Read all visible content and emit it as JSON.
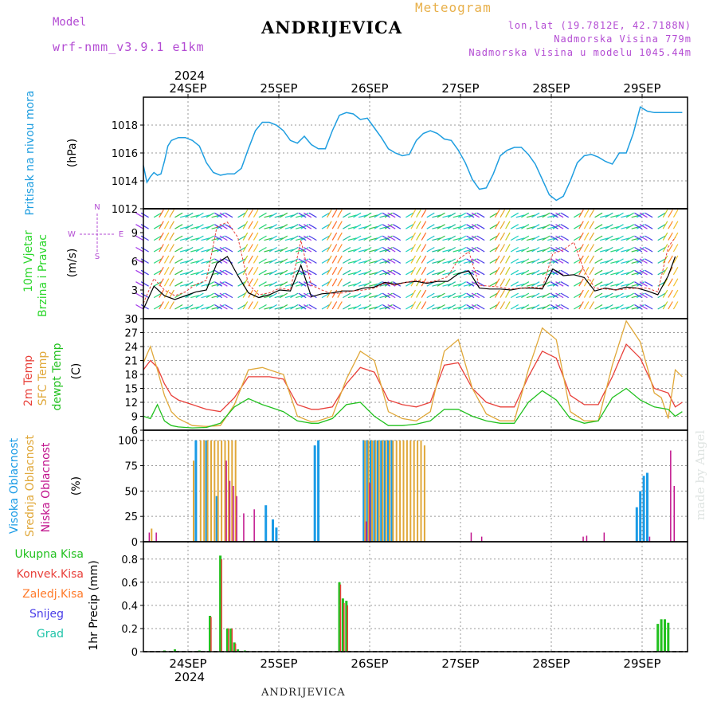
{
  "header": {
    "model_label": "Model",
    "model_name": "wrf-nmm_v3.9.1 e1km",
    "title": "ANDRIJEVICA",
    "meteogram": "Meteogram",
    "coords": "lon,lat (19.7812E, 42.7188N)",
    "elevation": "Nadmorska Visina 779m",
    "model_elevation": "Nadmorska Visina u modelu 1045.44m",
    "footer": "ANDRIJEVICA",
    "signature": "made by Angel"
  },
  "colors": {
    "pressure": "#1f9ee0",
    "temp": "#e8403a",
    "sfc": "#e0a83a",
    "dew": "#22c11f",
    "high_cloud": "#1a9be6",
    "mid_cloud": "#e0a83a",
    "low_cloud": "#c0128c",
    "precip_total": "#22c11f",
    "precip_conv": "#e8403a",
    "precip_frz": "#ff7a2a",
    "snow": "#4a3ee8",
    "hail": "#22c4a9",
    "label_purple": "#b34bd3"
  },
  "chart_data": [
    {
      "type": "line",
      "panel": "pressure",
      "ylabel": "Pritisak na nivou mora",
      "unit": "(hPa)",
      "ylim": [
        1012,
        1020
      ],
      "yticks": [
        1012,
        1014,
        1016,
        1018
      ],
      "x_days": [
        "24SEP",
        "25SEP",
        "26SEP",
        "27SEP",
        "28SEP",
        "29SEP"
      ],
      "x_year": "2024",
      "series": [
        {
          "x": [
            0,
            1,
            2,
            3,
            4,
            5,
            6,
            7,
            8,
            10,
            12,
            14,
            16,
            18,
            20,
            22,
            24,
            26,
            28,
            30,
            32,
            34,
            36,
            38,
            40,
            42,
            44,
            46,
            48,
            50,
            52,
            54,
            56,
            58,
            60,
            62,
            64,
            66,
            68,
            70,
            72,
            74,
            76,
            78,
            80,
            82,
            84,
            86,
            88,
            90,
            92,
            94,
            96,
            98,
            100,
            102,
            104,
            106,
            108,
            110,
            112,
            114,
            116,
            118,
            120,
            122,
            124,
            126,
            128,
            130,
            132,
            134,
            136,
            138,
            140,
            142,
            144,
            146,
            148,
            150,
            152,
            154
          ],
          "values": [
            1015.1,
            1013.9,
            1014.3,
            1014.6,
            1014.4,
            1014.5,
            1015.4,
            1016.5,
            1016.9,
            1017.1,
            1017.1,
            1016.9,
            1016.5,
            1015.3,
            1014.6,
            1014.4,
            1014.5,
            1014.5,
            1014.9,
            1016.3,
            1017.6,
            1018.2,
            1018.2,
            1018.0,
            1017.6,
            1016.9,
            1016.7,
            1017.2,
            1016.6,
            1016.3,
            1016.3,
            1017.6,
            1018.7,
            1018.9,
            1018.8,
            1018.4,
            1018.5,
            1017.8,
            1017.1,
            1016.3,
            1016.0,
            1015.8,
            1015.9,
            1016.9,
            1017.4,
            1017.6,
            1017.4,
            1017.0,
            1016.9,
            1016.2,
            1015.3,
            1014.1,
            1013.4,
            1013.5,
            1014.5,
            1015.8,
            1016.2,
            1016.4,
            1016.4,
            1015.9,
            1015.2,
            1014.1,
            1013.0,
            1012.6,
            1012.9,
            1014.0,
            1015.3,
            1015.8,
            1015.9,
            1015.7,
            1015.4,
            1015.2,
            1016.0,
            1016.0,
            1017.4,
            1019.3,
            1019.0,
            1018.9,
            1018.9,
            1018.9,
            1018.9,
            1018.9
          ]
        }
      ]
    },
    {
      "type": "line",
      "panel": "wind",
      "ylabel": "10m Vjetar Brzina i Pravac",
      "unit": "(m/s)",
      "compass": {
        "n": "N",
        "w": "W",
        "e": "E",
        "s": "S"
      },
      "ylim": [
        0,
        11.5
      ],
      "yticks": [
        0,
        3,
        6,
        9
      ],
      "series": [
        {
          "name": "speed",
          "x": [
            0,
            3,
            6,
            9,
            12,
            15,
            18,
            21,
            24,
            27,
            30,
            33,
            36,
            39,
            42,
            45,
            48,
            51,
            54,
            57,
            60,
            63,
            66,
            69,
            72,
            75,
            78,
            81,
            84,
            87,
            90,
            93,
            96,
            99,
            102,
            105,
            108,
            111,
            114,
            117,
            120,
            123,
            126,
            129,
            132,
            135,
            138,
            141,
            144,
            147,
            150,
            152
          ],
          "values": [
            1.0,
            3.4,
            2.4,
            2.0,
            2.4,
            2.8,
            3.0,
            5.8,
            6.5,
            4.5,
            2.7,
            2.2,
            2.5,
            3.0,
            2.9,
            5.6,
            2.3,
            2.6,
            2.7,
            2.9,
            2.9,
            3.2,
            3.3,
            3.8,
            3.6,
            3.8,
            3.9,
            3.7,
            3.9,
            3.9,
            4.7,
            5.0,
            3.2,
            3.1,
            3.1,
            3.0,
            3.2,
            3.2,
            3.1,
            5.2,
            4.5,
            4.6,
            4.3,
            2.9,
            3.2,
            3.0,
            3.3,
            3.2,
            2.9,
            2.5,
            4.5,
            6.5
          ]
        },
        {
          "name": "gust",
          "x": [
            0,
            3,
            6,
            9,
            12,
            15,
            18,
            21,
            24,
            27,
            30,
            33,
            36,
            39,
            42,
            45,
            48,
            51,
            54,
            57,
            60,
            63,
            66,
            69,
            72,
            75,
            78,
            81,
            84,
            87,
            90,
            93,
            96,
            99,
            102,
            105,
            108,
            111,
            114,
            117,
            120,
            123,
            126,
            129,
            132,
            135,
            138,
            141,
            144,
            147,
            150,
            152
          ],
          "values": [
            1.6,
            4.2,
            3.0,
            2.4,
            2.8,
            3.6,
            4.0,
            9.6,
            10.1,
            8.5,
            3.6,
            2.5,
            2.7,
            3.2,
            3.0,
            8.2,
            3.5,
            3.0,
            2.6,
            2.7,
            2.9,
            3.0,
            3.2,
            3.7,
            3.5,
            3.8,
            4.0,
            3.8,
            4.0,
            4.4,
            6.2,
            7.0,
            3.5,
            3.4,
            3.3,
            3.1,
            3.2,
            3.3,
            3.2,
            6.8,
            7.2,
            8.0,
            5.0,
            3.2,
            3.1,
            3.0,
            3.1,
            3.2,
            3.2,
            2.8,
            7.5,
            8.5
          ]
        }
      ]
    },
    {
      "type": "line",
      "panel": "temperature",
      "ylabel": [
        "2m Temp",
        "SFC Temp",
        "dewpt Temp"
      ],
      "unit": "(C)",
      "ylim": [
        6,
        30
      ],
      "yticks": [
        6,
        9,
        12,
        15,
        18,
        21,
        24,
        27,
        30
      ],
      "series": [
        {
          "name": "2m Temp",
          "x": [
            0,
            2,
            4,
            6,
            8,
            10,
            14,
            18,
            22,
            26,
            30,
            34,
            36,
            40,
            44,
            48,
            50,
            54,
            58,
            62,
            66,
            70,
            74,
            78,
            82,
            86,
            90,
            94,
            98,
            102,
            106,
            110,
            114,
            118,
            122,
            126,
            130,
            134,
            138,
            142,
            146,
            150,
            152,
            154
          ],
          "values": [
            19.0,
            21.0,
            19.5,
            16.0,
            13.5,
            12.5,
            11.5,
            10.5,
            10.0,
            13.0,
            17.5,
            17.5,
            17.5,
            17.0,
            11.5,
            10.5,
            10.5,
            11.0,
            16.0,
            19.5,
            18.5,
            12.5,
            11.5,
            11.0,
            12.0,
            20.0,
            20.5,
            15.0,
            12.0,
            11.0,
            11.0,
            17.5,
            23.0,
            21.5,
            13.5,
            11.5,
            11.5,
            17.5,
            24.5,
            21.5,
            15.0,
            14.0,
            11.0,
            12.0
          ]
        },
        {
          "name": "SFC Temp",
          "x": [
            0,
            2,
            4,
            6,
            8,
            10,
            14,
            18,
            22,
            26,
            30,
            34,
            36,
            40,
            44,
            48,
            50,
            54,
            58,
            62,
            66,
            70,
            74,
            78,
            82,
            86,
            90,
            94,
            98,
            102,
            106,
            110,
            114,
            118,
            122,
            126,
            130,
            134,
            138,
            142,
            146,
            148,
            150,
            152,
            154
          ],
          "values": [
            20.5,
            24.0,
            19.0,
            13.5,
            10.0,
            8.5,
            7.0,
            6.8,
            7.0,
            11.5,
            19.0,
            19.5,
            19.0,
            18.0,
            9.0,
            7.8,
            8.0,
            9.0,
            17.0,
            23.0,
            21.0,
            10.0,
            8.5,
            8.0,
            10.0,
            23.0,
            25.5,
            15.0,
            9.5,
            8.0,
            8.0,
            19.0,
            28.0,
            25.5,
            10.0,
            8.0,
            8.0,
            20.0,
            29.5,
            25.0,
            14.0,
            13.0,
            8.5,
            19.0,
            17.5
          ]
        },
        {
          "name": "dewpt Temp",
          "x": [
            0,
            2,
            4,
            6,
            8,
            10,
            14,
            18,
            22,
            26,
            30,
            34,
            36,
            40,
            44,
            48,
            50,
            54,
            58,
            62,
            66,
            70,
            74,
            78,
            82,
            86,
            90,
            94,
            98,
            102,
            106,
            110,
            114,
            118,
            122,
            126,
            130,
            134,
            138,
            142,
            146,
            150,
            152,
            154
          ],
          "values": [
            9.0,
            8.5,
            11.5,
            8.0,
            7.0,
            6.7,
            6.5,
            6.6,
            7.5,
            11.0,
            12.8,
            11.5,
            11.0,
            10.0,
            8.0,
            7.5,
            7.5,
            8.5,
            11.5,
            12.0,
            9.0,
            7.0,
            7.0,
            7.3,
            8.0,
            10.5,
            10.5,
            9.0,
            8.0,
            7.5,
            7.5,
            12.0,
            14.5,
            12.5,
            8.5,
            7.5,
            8.0,
            13.0,
            15.0,
            12.5,
            11.0,
            10.5,
            9.0,
            10.0
          ]
        }
      ]
    },
    {
      "type": "bar",
      "panel": "clouds",
      "ylabel": [
        "Visoka Oblacnost",
        "Srednja Oblacnost",
        "Niska Oblacnost"
      ],
      "unit": "(%)",
      "ylim": [
        0,
        100
      ],
      "yticks": [
        0,
        25,
        50,
        75,
        100
      ],
      "series": [
        {
          "name": "Visoka Oblacnost",
          "x": [
            15,
            18,
            21,
            35,
            37,
            38,
            49,
            50,
            63,
            64,
            65,
            66,
            67,
            68,
            69,
            70,
            71,
            141,
            142,
            143,
            144
          ],
          "values": [
            100,
            100,
            45,
            36,
            22,
            14,
            95,
            100,
            100,
            100,
            100,
            100,
            100,
            100,
            100,
            100,
            100,
            34,
            50,
            65,
            68
          ]
        },
        {
          "name": "Srednja Oblacnost",
          "x": [
            2,
            14,
            16,
            17,
            18,
            19,
            20,
            21,
            22,
            23,
            24,
            25,
            26,
            63,
            64,
            65,
            66,
            67,
            68,
            69,
            70,
            71,
            72,
            73,
            74,
            75,
            76,
            77,
            78,
            79,
            80
          ],
          "values": [
            13,
            80,
            100,
            100,
            100,
            100,
            100,
            100,
            100,
            100,
            100,
            100,
            100,
            100,
            100,
            100,
            100,
            100,
            100,
            100,
            100,
            100,
            100,
            100,
            100,
            100,
            100,
            100,
            100,
            100,
            95
          ]
        },
        {
          "name": "Niska Oblacnost",
          "x": [
            1,
            3,
            23,
            24,
            25,
            26,
            28,
            31,
            63,
            64,
            93,
            96,
            125,
            126,
            131,
            144,
            150,
            151
          ],
          "values": [
            9,
            9,
            80,
            60,
            55,
            45,
            28,
            32,
            20,
            58,
            9,
            5,
            5,
            6,
            9,
            5,
            90,
            55
          ]
        }
      ]
    },
    {
      "type": "bar",
      "panel": "precip",
      "ylabel": [
        "Ukupna Kisa",
        "Konvek.Kisa",
        "Zaledj.Kisa",
        "Snijeg",
        "Grad"
      ],
      "unit": "1hr Precip (mm)",
      "ylim": [
        0,
        0.95
      ],
      "yticks": [
        0,
        0.2,
        0.4,
        0.6,
        0.8
      ],
      "series": [
        {
          "name": "Ukupna Kisa",
          "x": [
            6,
            9,
            16,
            19,
            22,
            24,
            25,
            26,
            27,
            29,
            56,
            57,
            58,
            147,
            148,
            149,
            150
          ],
          "values": [
            0.01,
            0.02,
            0.01,
            0.31,
            0.83,
            0.2,
            0.2,
            0.08,
            0.02,
            0.01,
            0.6,
            0.46,
            0.44,
            0.24,
            0.28,
            0.28,
            0.25
          ]
        },
        {
          "name": "Konvek.Kisa",
          "x": [
            19,
            22,
            24,
            25,
            26,
            56,
            57,
            58
          ],
          "values": [
            0.3,
            0.8,
            0.2,
            0.2,
            0.07,
            0.58,
            0.42,
            0.4
          ]
        }
      ]
    }
  ]
}
